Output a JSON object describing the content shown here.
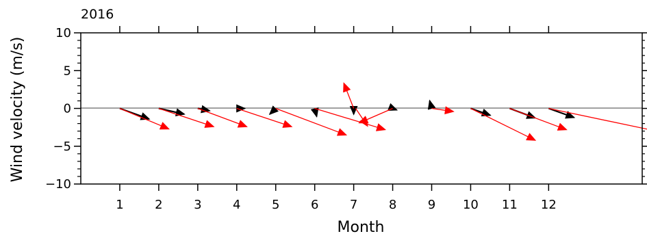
{
  "chart_data": {
    "type": "vector",
    "title": "2016",
    "xlabel": "Month",
    "ylabel": "Wind velocity (m/s)",
    "xticks": [
      "1",
      "2",
      "3",
      "4",
      "5",
      "6",
      "7",
      "8",
      "9",
      "10",
      "11",
      "12"
    ],
    "yticks": [
      "10",
      "5",
      "0",
      "−5",
      "−10"
    ],
    "xlim": [
      0,
      14.4
    ],
    "ylim": [
      -10,
      10
    ],
    "zero_line": true,
    "series": [
      {
        "color": "#000000",
        "vectors": [
          {
            "month": 1,
            "u": 0.75,
            "v": -1.4
          },
          {
            "month": 2,
            "u": 0.65,
            "v": -0.75
          },
          {
            "month": 3,
            "u": 0.3,
            "v": -0.3
          },
          {
            "month": 4,
            "u": 0.2,
            "v": 0.0
          },
          {
            "month": 5,
            "u": -0.15,
            "v": -0.75
          },
          {
            "month": 6,
            "u": 0.05,
            "v": -1.05
          },
          {
            "month": 7,
            "u": 0.0,
            "v": -0.75
          },
          {
            "month": 8,
            "u": 0.1,
            "v": -0.2
          },
          {
            "month": 9,
            "u": -0.05,
            "v": 1.0
          },
          {
            "month": 10,
            "u": 0.5,
            "v": -0.9
          },
          {
            "month": 11,
            "u": 0.65,
            "v": -1.25
          },
          {
            "month": 12,
            "u": 0.65,
            "v": -1.2
          }
        ]
      },
      {
        "color": "#ff0000",
        "vectors": [
          {
            "month": 1,
            "u": 1.25,
            "v": -2.7
          },
          {
            "month": 2,
            "u": 1.4,
            "v": -2.4
          },
          {
            "month": 3,
            "u": 1.25,
            "v": -2.4
          },
          {
            "month": 4,
            "u": 1.4,
            "v": -2.4
          },
          {
            "month": 5,
            "u": 1.8,
            "v": -3.5
          },
          {
            "month": 6,
            "u": 1.8,
            "v": -2.8
          },
          {
            "month": 7,
            "u": -0.25,
            "v": 3.3
          },
          {
            "month": 7.05,
            "u": 0.3,
            "v": -2.3
          },
          {
            "month": 8,
            "u": -0.85,
            "v": -1.9
          },
          {
            "month": 9,
            "u": 0.55,
            "v": -0.4
          },
          {
            "month": 10,
            "u": 1.65,
            "v": -4.2
          },
          {
            "month": 11,
            "u": 1.45,
            "v": -2.8
          },
          {
            "month": 12,
            "u": 4.15,
            "v": -4.5
          }
        ]
      }
    ]
  }
}
